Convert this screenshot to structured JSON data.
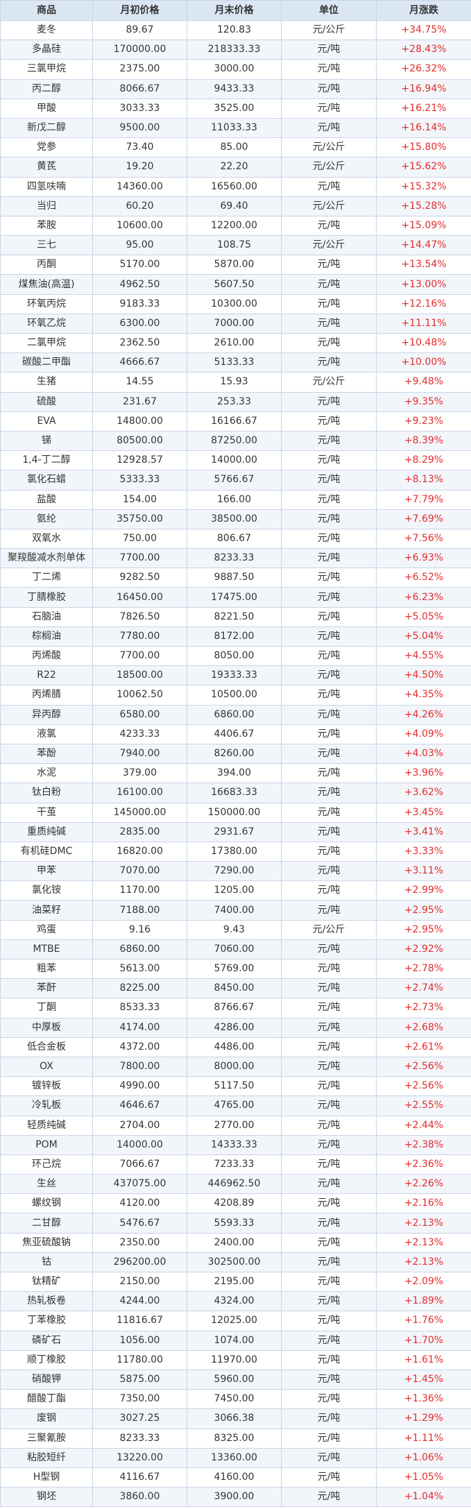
{
  "headers": [
    "商品",
    "月初价格",
    "月末价格",
    "单位",
    "月涨跌"
  ],
  "rows": [
    [
      "麦冬",
      "89.67",
      "120.83",
      "元/公斤",
      "+34.75%"
    ],
    [
      "多晶硅",
      "170000.00",
      "218333.33",
      "元/吨",
      "+28.43%"
    ],
    [
      "三氯甲烷",
      "2375.00",
      "3000.00",
      "元/吨",
      "+26.32%"
    ],
    [
      "丙二醇",
      "8066.67",
      "9433.33",
      "元/吨",
      "+16.94%"
    ],
    [
      "甲酸",
      "3033.33",
      "3525.00",
      "元/吨",
      "+16.21%"
    ],
    [
      "新戊二醇",
      "9500.00",
      "11033.33",
      "元/吨",
      "+16.14%"
    ],
    [
      "党参",
      "73.40",
      "85.00",
      "元/公斤",
      "+15.80%"
    ],
    [
      "黄芪",
      "19.20",
      "22.20",
      "元/公斤",
      "+15.62%"
    ],
    [
      "四氢呋喃",
      "14360.00",
      "16560.00",
      "元/吨",
      "+15.32%"
    ],
    [
      "当归",
      "60.20",
      "69.40",
      "元/公斤",
      "+15.28%"
    ],
    [
      "苯胺",
      "10600.00",
      "12200.00",
      "元/吨",
      "+15.09%"
    ],
    [
      "三七",
      "95.00",
      "108.75",
      "元/公斤",
      "+14.47%"
    ],
    [
      "丙酮",
      "5170.00",
      "5870.00",
      "元/吨",
      "+13.54%"
    ],
    [
      "煤焦油(高温)",
      "4962.50",
      "5607.50",
      "元/吨",
      "+13.00%"
    ],
    [
      "环氧丙烷",
      "9183.33",
      "10300.00",
      "元/吨",
      "+12.16%"
    ],
    [
      "环氧乙烷",
      "6300.00",
      "7000.00",
      "元/吨",
      "+11.11%"
    ],
    [
      "二氯甲烷",
      "2362.50",
      "2610.00",
      "元/吨",
      "+10.48%"
    ],
    [
      "碳酸二甲酯",
      "4666.67",
      "5133.33",
      "元/吨",
      "+10.00%"
    ],
    [
      "生猪",
      "14.55",
      "15.93",
      "元/公斤",
      "+9.48%"
    ],
    [
      "硫酸",
      "231.67",
      "253.33",
      "元/吨",
      "+9.35%"
    ],
    [
      "EVA",
      "14800.00",
      "16166.67",
      "元/吨",
      "+9.23%"
    ],
    [
      "锑",
      "80500.00",
      "87250.00",
      "元/吨",
      "+8.39%"
    ],
    [
      "1,4-丁二醇",
      "12928.57",
      "14000.00",
      "元/吨",
      "+8.29%"
    ],
    [
      "氯化石蜡",
      "5333.33",
      "5766.67",
      "元/吨",
      "+8.13%"
    ],
    [
      "盐酸",
      "154.00",
      "166.00",
      "元/吨",
      "+7.79%"
    ],
    [
      "氨纶",
      "35750.00",
      "38500.00",
      "元/吨",
      "+7.69%"
    ],
    [
      "双氧水",
      "750.00",
      "806.67",
      "元/吨",
      "+7.56%"
    ],
    [
      "聚羧酸减水剂单体",
      "7700.00",
      "8233.33",
      "元/吨",
      "+6.93%"
    ],
    [
      "丁二烯",
      "9282.50",
      "9887.50",
      "元/吨",
      "+6.52%"
    ],
    [
      "丁腈橡胶",
      "16450.00",
      "17475.00",
      "元/吨",
      "+6.23%"
    ],
    [
      "石脑油",
      "7826.50",
      "8221.50",
      "元/吨",
      "+5.05%"
    ],
    [
      "棕榈油",
      "7780.00",
      "8172.00",
      "元/吨",
      "+5.04%"
    ],
    [
      "丙烯酸",
      "7700.00",
      "8050.00",
      "元/吨",
      "+4.55%"
    ],
    [
      "R22",
      "18500.00",
      "19333.33",
      "元/吨",
      "+4.50%"
    ],
    [
      "丙烯腈",
      "10062.50",
      "10500.00",
      "元/吨",
      "+4.35%"
    ],
    [
      "异丙醇",
      "6580.00",
      "6860.00",
      "元/吨",
      "+4.26%"
    ],
    [
      "液氯",
      "4233.33",
      "4406.67",
      "元/吨",
      "+4.09%"
    ],
    [
      "苯酚",
      "7940.00",
      "8260.00",
      "元/吨",
      "+4.03%"
    ],
    [
      "水泥",
      "379.00",
      "394.00",
      "元/吨",
      "+3.96%"
    ],
    [
      "钛白粉",
      "16100.00",
      "16683.33",
      "元/吨",
      "+3.62%"
    ],
    [
      "干茧",
      "145000.00",
      "150000.00",
      "元/吨",
      "+3.45%"
    ],
    [
      "重质纯碱",
      "2835.00",
      "2931.67",
      "元/吨",
      "+3.41%"
    ],
    [
      "有机硅DMC",
      "16820.00",
      "17380.00",
      "元/吨",
      "+3.33%"
    ],
    [
      "甲苯",
      "7070.00",
      "7290.00",
      "元/吨",
      "+3.11%"
    ],
    [
      "氯化铵",
      "1170.00",
      "1205.00",
      "元/吨",
      "+2.99%"
    ],
    [
      "油菜籽",
      "7188.00",
      "7400.00",
      "元/吨",
      "+2.95%"
    ],
    [
      "鸡蛋",
      "9.16",
      "9.43",
      "元/公斤",
      "+2.95%"
    ],
    [
      "MTBE",
      "6860.00",
      "7060.00",
      "元/吨",
      "+2.92%"
    ],
    [
      "粗苯",
      "5613.00",
      "5769.00",
      "元/吨",
      "+2.78%"
    ],
    [
      "苯酐",
      "8225.00",
      "8450.00",
      "元/吨",
      "+2.74%"
    ],
    [
      "丁酮",
      "8533.33",
      "8766.67",
      "元/吨",
      "+2.73%"
    ],
    [
      "中厚板",
      "4174.00",
      "4286.00",
      "元/吨",
      "+2.68%"
    ],
    [
      "低合金板",
      "4372.00",
      "4486.00",
      "元/吨",
      "+2.61%"
    ],
    [
      "OX",
      "7800.00",
      "8000.00",
      "元/吨",
      "+2.56%"
    ],
    [
      "镀锌板",
      "4990.00",
      "5117.50",
      "元/吨",
      "+2.56%"
    ],
    [
      "冷轧板",
      "4646.67",
      "4765.00",
      "元/吨",
      "+2.55%"
    ],
    [
      "轻质纯碱",
      "2704.00",
      "2770.00",
      "元/吨",
      "+2.44%"
    ],
    [
      "POM",
      "14000.00",
      "14333.33",
      "元/吨",
      "+2.38%"
    ],
    [
      "环己烷",
      "7066.67",
      "7233.33",
      "元/吨",
      "+2.36%"
    ],
    [
      "生丝",
      "437075.00",
      "446962.50",
      "元/吨",
      "+2.26%"
    ],
    [
      "螺纹钢",
      "4120.00",
      "4208.89",
      "元/吨",
      "+2.16%"
    ],
    [
      "二甘醇",
      "5476.67",
      "5593.33",
      "元/吨",
      "+2.13%"
    ],
    [
      "焦亚硫酸钠",
      "2350.00",
      "2400.00",
      "元/吨",
      "+2.13%"
    ],
    [
      "钴",
      "296200.00",
      "302500.00",
      "元/吨",
      "+2.13%"
    ],
    [
      "钛精矿",
      "2150.00",
      "2195.00",
      "元/吨",
      "+2.09%"
    ],
    [
      "热轧板卷",
      "4244.00",
      "4324.00",
      "元/吨",
      "+1.89%"
    ],
    [
      "丁苯橡胶",
      "11816.67",
      "12025.00",
      "元/吨",
      "+1.76%"
    ],
    [
      "磷矿石",
      "1056.00",
      "1074.00",
      "元/吨",
      "+1.70%"
    ],
    [
      "顺丁橡胶",
      "11780.00",
      "11970.00",
      "元/吨",
      "+1.61%"
    ],
    [
      "硝酸钾",
      "5875.00",
      "5960.00",
      "元/吨",
      "+1.45%"
    ],
    [
      "醋酸丁酯",
      "7350.00",
      "7450.00",
      "元/吨",
      "+1.36%"
    ],
    [
      "废钢",
      "3027.25",
      "3066.38",
      "元/吨",
      "+1.29%"
    ],
    [
      "三聚氰胺",
      "8233.33",
      "8325.00",
      "元/吨",
      "+1.11%"
    ],
    [
      "粘胶短纤",
      "13220.00",
      "13360.00",
      "元/吨",
      "+1.06%"
    ],
    [
      "H型钢",
      "4116.67",
      "4160.00",
      "元/吨",
      "+1.05%"
    ],
    [
      "钢坯",
      "3860.00",
      "3900.00",
      "元/吨",
      "+1.04%"
    ]
  ],
  "colors": {
    "header_bg": "#dbe6f3",
    "border": "#c8d4e4",
    "stripe": "#f2f6fb",
    "change_text": "#e52b2b"
  }
}
